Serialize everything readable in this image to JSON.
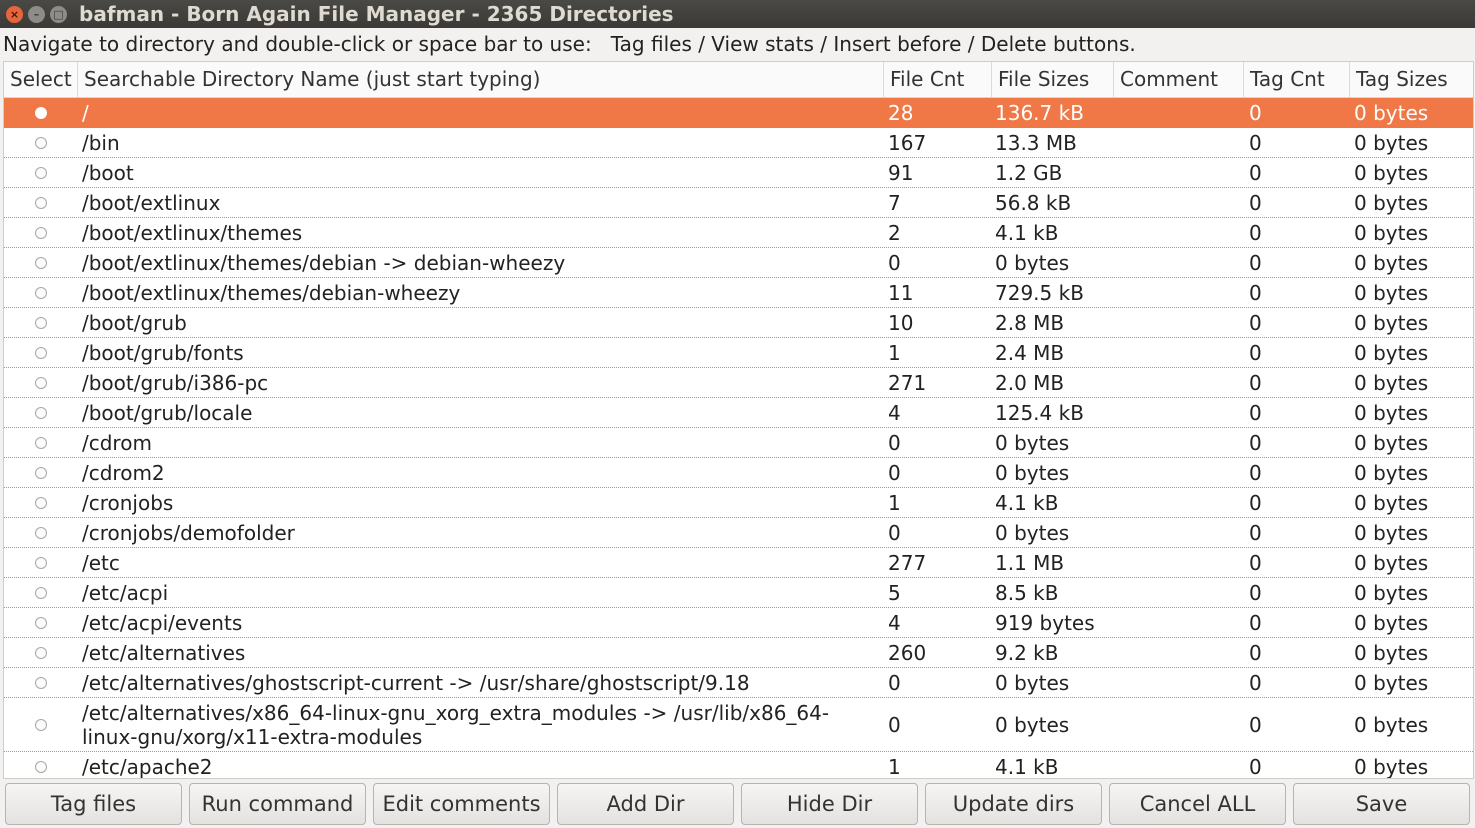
{
  "window": {
    "title": "bafman - Born Again File Manager - 2365 Directories",
    "close_glyph": "×",
    "minimize_glyph": "–",
    "maximize_glyph": "□"
  },
  "instructions": "Navigate to directory and double-click or space bar to use:   Tag files / View stats / Insert before / Delete buttons.",
  "table": {
    "columns": [
      "Select",
      "Searchable Directory Name (just start typing)",
      "File Cnt",
      "File Sizes",
      "Comment",
      "Tag Cnt",
      "Tag Sizes"
    ],
    "selected_row": 0,
    "rows": [
      {
        "name": "/",
        "file_cnt": "28",
        "file_sizes": "136.7 kB",
        "comment": "",
        "tag_cnt": "0",
        "tag_sizes": "0 bytes"
      },
      {
        "name": "/bin",
        "file_cnt": "167",
        "file_sizes": "13.3 MB",
        "comment": "",
        "tag_cnt": "0",
        "tag_sizes": "0 bytes"
      },
      {
        "name": "/boot",
        "file_cnt": "91",
        "file_sizes": "1.2 GB",
        "comment": "",
        "tag_cnt": "0",
        "tag_sizes": "0 bytes"
      },
      {
        "name": "/boot/extlinux",
        "file_cnt": "7",
        "file_sizes": "56.8 kB",
        "comment": "",
        "tag_cnt": "0",
        "tag_sizes": "0 bytes"
      },
      {
        "name": "/boot/extlinux/themes",
        "file_cnt": "2",
        "file_sizes": "4.1 kB",
        "comment": "",
        "tag_cnt": "0",
        "tag_sizes": "0 bytes"
      },
      {
        "name": "/boot/extlinux/themes/debian -> debian-wheezy",
        "file_cnt": "0",
        "file_sizes": "0 bytes",
        "comment": "",
        "tag_cnt": "0",
        "tag_sizes": "0 bytes"
      },
      {
        "name": "/boot/extlinux/themes/debian-wheezy",
        "file_cnt": "11",
        "file_sizes": "729.5 kB",
        "comment": "",
        "tag_cnt": "0",
        "tag_sizes": "0 bytes"
      },
      {
        "name": "/boot/grub",
        "file_cnt": "10",
        "file_sizes": "2.8 MB",
        "comment": "",
        "tag_cnt": "0",
        "tag_sizes": "0 bytes"
      },
      {
        "name": "/boot/grub/fonts",
        "file_cnt": "1",
        "file_sizes": "2.4 MB",
        "comment": "",
        "tag_cnt": "0",
        "tag_sizes": "0 bytes"
      },
      {
        "name": "/boot/grub/i386-pc",
        "file_cnt": "271",
        "file_sizes": "2.0 MB",
        "comment": "",
        "tag_cnt": "0",
        "tag_sizes": "0 bytes"
      },
      {
        "name": "/boot/grub/locale",
        "file_cnt": "4",
        "file_sizes": "125.4 kB",
        "comment": "",
        "tag_cnt": "0",
        "tag_sizes": "0 bytes"
      },
      {
        "name": "/cdrom",
        "file_cnt": "0",
        "file_sizes": "0 bytes",
        "comment": "",
        "tag_cnt": "0",
        "tag_sizes": "0 bytes"
      },
      {
        "name": "/cdrom2",
        "file_cnt": "0",
        "file_sizes": "0 bytes",
        "comment": "",
        "tag_cnt": "0",
        "tag_sizes": "0 bytes"
      },
      {
        "name": "/cronjobs",
        "file_cnt": "1",
        "file_sizes": "4.1 kB",
        "comment": "",
        "tag_cnt": "0",
        "tag_sizes": "0 bytes"
      },
      {
        "name": "/cronjobs/demofolder",
        "file_cnt": "0",
        "file_sizes": "0 bytes",
        "comment": "",
        "tag_cnt": "0",
        "tag_sizes": "0 bytes"
      },
      {
        "name": "/etc",
        "file_cnt": "277",
        "file_sizes": "1.1 MB",
        "comment": "",
        "tag_cnt": "0",
        "tag_sizes": "0 bytes"
      },
      {
        "name": "/etc/acpi",
        "file_cnt": "5",
        "file_sizes": "8.5 kB",
        "comment": "",
        "tag_cnt": "0",
        "tag_sizes": "0 bytes"
      },
      {
        "name": "/etc/acpi/events",
        "file_cnt": "4",
        "file_sizes": "919 bytes",
        "comment": "",
        "tag_cnt": "0",
        "tag_sizes": "0 bytes"
      },
      {
        "name": "/etc/alternatives",
        "file_cnt": "260",
        "file_sizes": "9.2 kB",
        "comment": "",
        "tag_cnt": "0",
        "tag_sizes": "0 bytes"
      },
      {
        "name": "/etc/alternatives/ghostscript-current -> /usr/share/ghostscript/9.18",
        "file_cnt": "0",
        "file_sizes": "0 bytes",
        "comment": "",
        "tag_cnt": "0",
        "tag_sizes": "0 bytes"
      },
      {
        "name": "/etc/alternatives/x86_64-linux-gnu_xorg_extra_modules -> /usr/lib/x86_64-linux-gnu/xorg/x11-extra-modules",
        "file_cnt": "0",
        "file_sizes": "0 bytes",
        "comment": "",
        "tag_cnt": "0",
        "tag_sizes": "0 bytes",
        "tall": true
      },
      {
        "name": "/etc/apache2",
        "file_cnt": "1",
        "file_sizes": "4.1 kB",
        "comment": "",
        "tag_cnt": "0",
        "tag_sizes": "0 bytes"
      }
    ]
  },
  "buttons": [
    "Tag files",
    "Run command",
    "Edit comments",
    "Add Dir",
    "Hide Dir",
    "Update dirs",
    "Cancel ALL",
    "Save"
  ],
  "colors": {
    "selection": "#f07746",
    "titlebar": "#3c3b37",
    "close_button": "#e9643a"
  }
}
